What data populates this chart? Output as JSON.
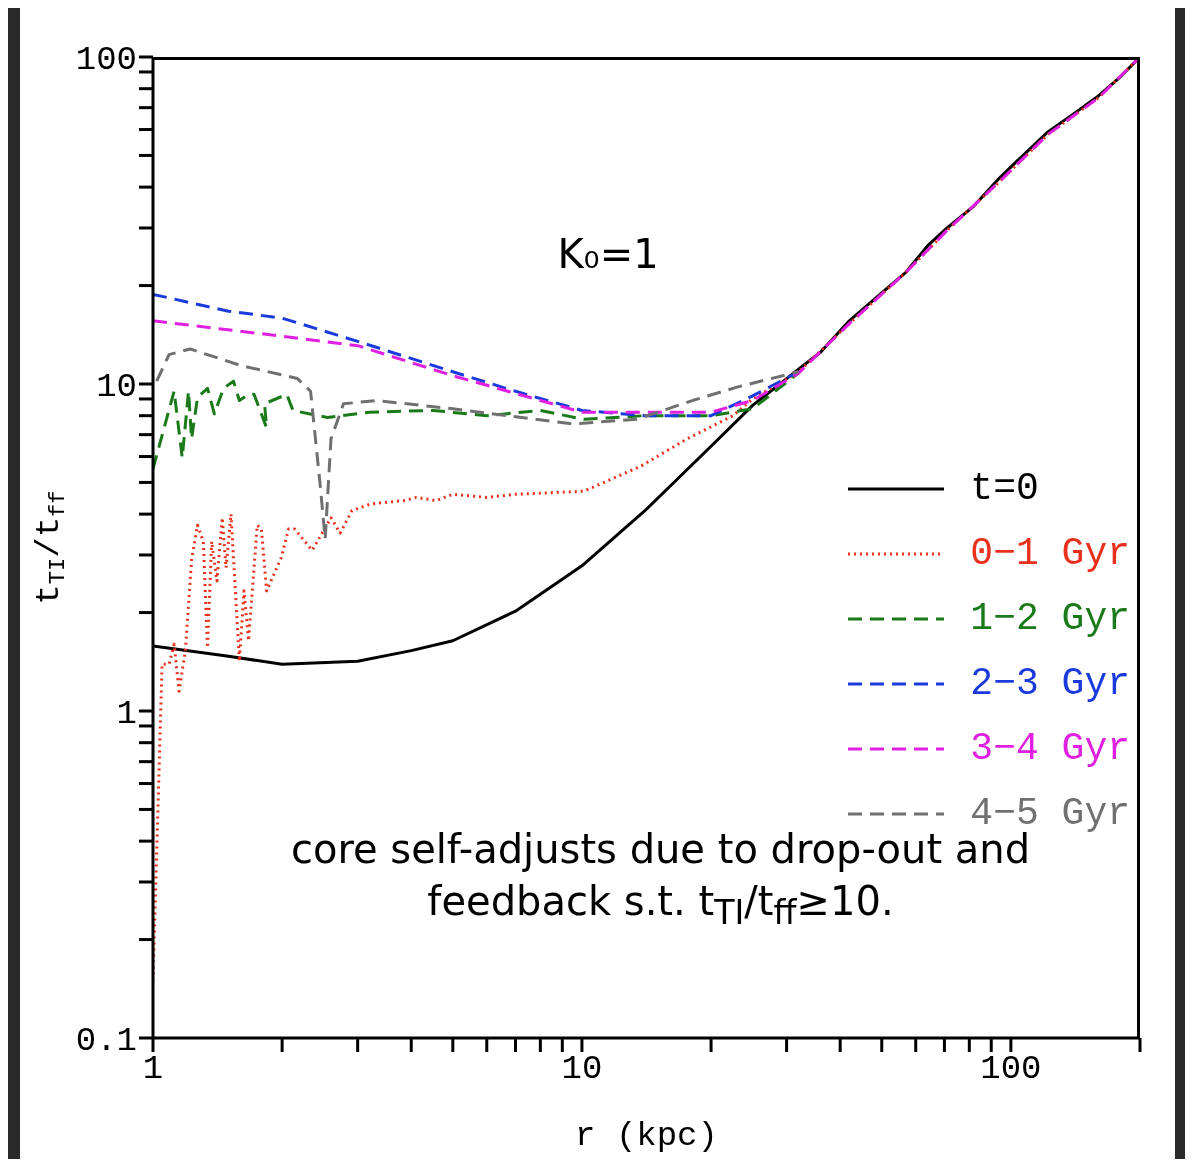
{
  "chart_data": {
    "type": "line",
    "xlabel": "r (kpc)",
    "ylabel": "t$_{TI}$/t$_{ff}$",
    "annotations": [
      "K₀=1",
      "core self-adjusts due to drop-out and feedback s.t. t$_{TI}$/t$_{ff}$≥10."
    ],
    "log": "xy",
    "xlim": [
      1,
      200
    ],
    "ylim": [
      0.1,
      100
    ],
    "xticks": [
      1,
      {
        "value": 2,
        "label": null
      },
      {
        "value": 3,
        "label": null
      },
      {
        "value": 4,
        "label": null
      },
      {
        "value": 5,
        "label": null
      },
      {
        "value": 6,
        "label": null
      },
      {
        "value": 7,
        "label": null
      },
      {
        "value": 8,
        "label": null
      },
      {
        "value": 9,
        "label": null
      },
      10,
      {
        "value": 20,
        "label": null
      },
      {
        "value": 30,
        "label": null
      },
      {
        "value": 40,
        "label": null
      },
      {
        "value": 50,
        "label": null
      },
      {
        "value": 60,
        "label": null
      },
      {
        "value": 70,
        "label": null
      },
      {
        "value": 80,
        "label": null
      },
      {
        "value": 90,
        "label": null
      },
      100,
      {
        "value": 200,
        "label": null
      }
    ],
    "yticks": [
      0.1,
      {
        "value": 0.2,
        "label": null
      },
      {
        "value": 0.3,
        "label": null
      },
      {
        "value": 0.4,
        "label": null
      },
      {
        "value": 0.5,
        "label": null
      },
      {
        "value": 0.6,
        "label": null
      },
      {
        "value": 0.7,
        "label": null
      },
      {
        "value": 0.8,
        "label": null
      },
      {
        "value": 0.9,
        "label": null
      },
      1,
      {
        "value": 2,
        "label": null
      },
      {
        "value": 3,
        "label": null
      },
      {
        "value": 4,
        "label": null
      },
      {
        "value": 5,
        "label": null
      },
      {
        "value": 6,
        "label": null
      },
      {
        "value": 7,
        "label": null
      },
      {
        "value": 8,
        "label": null
      },
      {
        "value": 9,
        "label": null
      },
      10,
      {
        "value": 20,
        "label": null
      },
      {
        "value": 30,
        "label": null
      },
      {
        "value": 40,
        "label": null
      },
      {
        "value": 50,
        "label": null
      },
      {
        "value": 60,
        "label": null
      },
      {
        "value": 70,
        "label": null
      },
      {
        "value": 80,
        "label": null
      },
      {
        "value": 90,
        "label": null
      },
      100
    ],
    "legend": "right",
    "marker": "none",
    "series": [
      {
        "name": "t=0",
        "color": "#000000",
        "line_style": "solid",
        "x": [
          1,
          1.5,
          2,
          3,
          4,
          5,
          7,
          10,
          14,
          20,
          25,
          32,
          36,
          42,
          50,
          57,
          64,
          71,
          82,
          93,
          105,
          122,
          140,
          160,
          180,
          200
        ],
        "values": [
          1.58,
          1.47,
          1.39,
          1.42,
          1.53,
          1.64,
          2.02,
          2.78,
          4.09,
          6.45,
          8.6,
          11.1,
          12.5,
          15.6,
          19,
          22,
          26.5,
          30,
          35,
          42,
          49,
          59,
          67,
          76,
          87,
          100
        ]
      },
      {
        "name": "0−1 Gyr",
        "color": "#e8301c",
        "line_style": "dotted",
        "x": [
          1,
          1.05,
          1.09,
          1.12,
          1.15,
          1.19,
          1.23,
          1.27,
          1.31,
          1.34,
          1.37,
          1.41,
          1.45,
          1.48,
          1.52,
          1.59,
          1.63,
          1.67,
          1.75,
          1.79,
          1.84,
          1.99,
          2.07,
          2.14,
          2.35,
          2.6,
          2.73,
          2.91,
          3.22,
          3.85,
          4.11,
          4.57,
          5.0,
          6.0,
          7.0,
          10.1,
          13.7,
          17.6,
          22.5,
          25,
          32,
          42,
          57,
          71,
          93,
          122,
          160,
          200
        ],
        "values": [
          0.15,
          1.39,
          1.39,
          1.6,
          1.15,
          1.53,
          2.9,
          3.7,
          3.3,
          1.56,
          3.3,
          2.5,
          3.9,
          2.74,
          4.0,
          1.42,
          2.33,
          1.64,
          3.7,
          3.6,
          2.33,
          2.94,
          3.6,
          3.6,
          3.1,
          3.9,
          3.5,
          4.1,
          4.3,
          4.4,
          4.5,
          4.4,
          4.6,
          4.5,
          4.6,
          4.7,
          5.6,
          6.8,
          8.0,
          9.0,
          10.9,
          15.3,
          22,
          29.5,
          41,
          58,
          75,
          100
        ]
      },
      {
        "name": "1−2 Gyr",
        "color": "#1a7a1a",
        "line_style": "dashed",
        "x": [
          1,
          1.12,
          1.17,
          1.21,
          1.23,
          1.27,
          1.34,
          1.39,
          1.46,
          1.54,
          1.59,
          1.67,
          1.72,
          1.84,
          1.82,
          2.05,
          2.12,
          2.55,
          3.2,
          4.5,
          6.0,
          8.0,
          10.1,
          14,
          20,
          25,
          32
        ],
        "values": [
          5.5,
          9.5,
          5.95,
          9.5,
          6.8,
          9.1,
          9.7,
          8.1,
          9.7,
          10.2,
          8.9,
          9.3,
          9.3,
          7.35,
          8.7,
          9.3,
          8.3,
          7.9,
          8.2,
          8.3,
          8.0,
          8.3,
          7.8,
          8.0,
          8.0,
          8.4,
          10.8
        ]
      },
      {
        "name": "2−3 Gyr",
        "color": "#1a3adc",
        "line_style": "dashed",
        "x": [
          1,
          1.5,
          2,
          3,
          5,
          7,
          10,
          14,
          20,
          25,
          32
        ],
        "values": [
          18.8,
          16.7,
          15.9,
          13.5,
          10.9,
          9.5,
          8.3,
          8.0,
          8.0,
          9.2,
          10.9
        ]
      },
      {
        "name": "3−4 Gyr",
        "color": "#e020e0",
        "line_style": "dashed",
        "x": [
          1,
          2,
          3,
          5,
          10,
          20,
          25,
          32,
          42,
          57,
          71,
          93,
          122,
          160,
          200
        ],
        "values": [
          15.6,
          14.0,
          13.1,
          10.6,
          8.2,
          8.2,
          8.9,
          10.8,
          15.3,
          22,
          29.5,
          41,
          58,
          75,
          100
        ]
      },
      {
        "name": "4−5 Gyr",
        "color": "#707070",
        "line_style": "dashed",
        "x": [
          1.02,
          1.09,
          1.22,
          1.6,
          2.17,
          2.33,
          2.45,
          2.52,
          2.6,
          2.78,
          3.32,
          5.0,
          9.5,
          13.4,
          18.1,
          23.1,
          32
        ],
        "values": [
          10.2,
          12.3,
          12.8,
          11.4,
          10.4,
          9.5,
          5.0,
          3.36,
          6.8,
          8.7,
          8.9,
          8.4,
          7.55,
          7.8,
          8.9,
          9.8,
          10.9
        ]
      }
    ]
  }
}
